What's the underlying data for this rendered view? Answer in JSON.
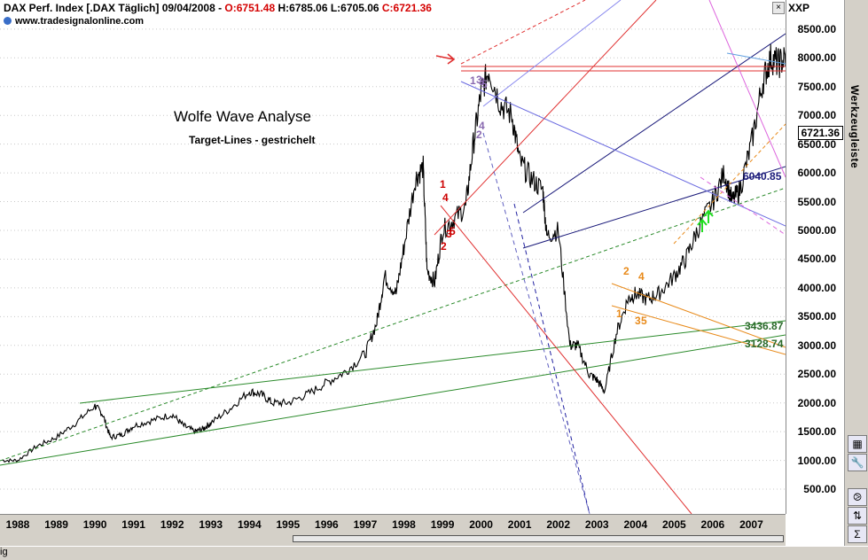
{
  "header": {
    "symbol": "DAX Perf. Index [.DAX  Täglich] 09/04/2008 - ",
    "open": "O:6751.48",
    "high_low": " H:6785.06  L:6705.06 ",
    "close": "C:6721.36",
    "url": "www.tradesignalonline.com"
  },
  "annotations": {
    "title": "Wolfe Wave Analyse",
    "subtitle": "Target-Lines - gestrichelt"
  },
  "toolbar": {
    "label": "Werkzeugleiste",
    "close": "×"
  },
  "statusbar": {
    "text": "ig"
  },
  "chart_data": {
    "type": "line",
    "title": "DAX Perf. Index [.DAX  Täglich] 09/04/2008",
    "y_unit_label": "XXP",
    "last_price_label": "6721.36",
    "ylim": [
      0,
      8900
    ],
    "xlim": [
      1987.6,
      2008.7
    ],
    "yticks": [
      500,
      1000,
      1500,
      2000,
      2500,
      3000,
      3500,
      4000,
      4500,
      5000,
      5500,
      6000,
      6500,
      7000,
      7500,
      8000,
      8500
    ],
    "ytick_labels": [
      "500.00",
      "1000.00",
      "1500.00",
      "2000.00",
      "2500.00",
      "3000.00",
      "3500.00",
      "4000.00",
      "4500.00",
      "5000.00",
      "5500.00",
      "6000.00",
      "6500.00",
      "7000.00",
      "7500.00",
      "8000.00",
      "8500.00"
    ],
    "xticks": [
      1988,
      1989,
      1990,
      1991,
      1992,
      1993,
      1994,
      1995,
      1996,
      1997,
      1998,
      1999,
      2000,
      2001,
      2002,
      2003,
      2004,
      2005,
      2006,
      2007
    ],
    "xtick_labels": [
      "1988",
      "1989",
      "1990",
      "1991",
      "1992",
      "1993",
      "1994",
      "1995",
      "1996",
      "1997",
      "1998",
      "1999",
      "2000",
      "2001",
      "2002",
      "2003",
      "2004",
      "2005",
      "2006",
      "2007"
    ],
    "series": [
      {
        "color": "#000000",
        "x": [
          1987.6,
          1988.0,
          1988.5,
          1989.0,
          1989.5,
          1990.0,
          1990.2,
          1990.4,
          1990.7,
          1991.0,
          1991.5,
          1992.0,
          1992.3,
          1992.6,
          1992.8,
          1993.0,
          1993.5,
          1994.0,
          1994.3,
          1994.6,
          1995.0,
          1995.5,
          1996.0,
          1996.5,
          1997.0,
          1997.3,
          1997.5,
          1997.8,
          1998.0,
          1998.3,
          1998.5,
          1998.6,
          1998.8,
          1999.0,
          1999.3,
          1999.6,
          1999.8,
          2000.0,
          2000.2,
          2000.5,
          2000.8,
          2001.0,
          2001.3,
          2001.6,
          2001.7,
          2002.0,
          2002.3,
          2002.5,
          2002.8,
          2003.0,
          2003.2,
          2003.5,
          2003.8,
          2004.0,
          2004.3,
          2004.6,
          2005.0,
          2005.3,
          2005.6,
          2006.0,
          2006.3,
          2006.5,
          2006.7,
          2007.0,
          2007.3,
          2007.5,
          2007.7,
          2007.9,
          2008.0,
          2008.1,
          2008.3
        ],
        "y": [
          1000,
          1000,
          1250,
          1400,
          1650,
          1950,
          1800,
          1400,
          1450,
          1600,
          1700,
          1800,
          1600,
          1500,
          1550,
          1650,
          1900,
          2200,
          2150,
          2000,
          2000,
          2150,
          2350,
          2550,
          2850,
          3400,
          4200,
          3900,
          4700,
          5900,
          6100,
          4300,
          4100,
          5000,
          5200,
          5400,
          6500,
          7400,
          7800,
          7200,
          7000,
          6200,
          5900,
          5700,
          4900,
          5000,
          3000,
          3000,
          2500,
          2400,
          2200,
          3200,
          3800,
          3900,
          3800,
          3900,
          4200,
          4500,
          5000,
          5500,
          6000,
          5500,
          5700,
          6500,
          7600,
          8000,
          7900,
          8000,
          7700,
          6900,
          6700
        ]
      }
    ],
    "labels": [
      "1",
      "2",
      "3",
      "4",
      "5",
      "1",
      "3",
      "3",
      "5",
      "2",
      "4",
      "1",
      "2",
      "3",
      "4",
      "5"
    ],
    "level_labels": [
      "6040.85",
      "3436.87",
      "3128.74"
    ]
  }
}
